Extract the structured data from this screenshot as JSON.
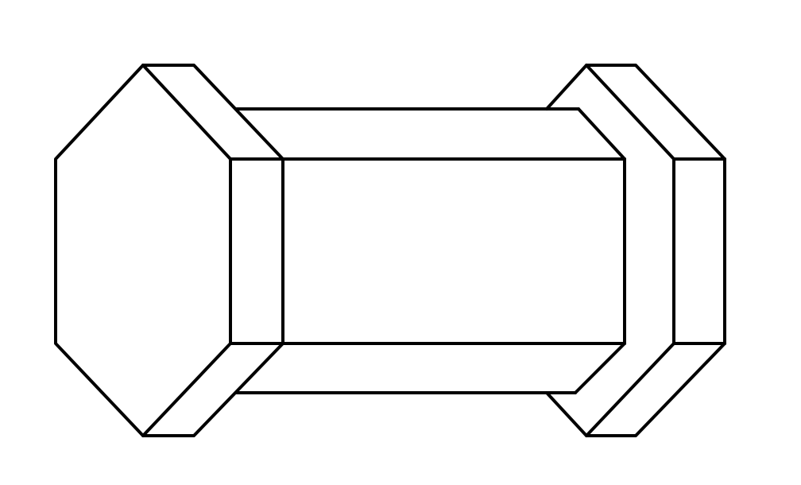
{
  "drawing": {
    "background_color": "#ffffff",
    "stroke_color": "#000000",
    "parts": [
      "left-hex-nut",
      "center-hexagonal-bar",
      "right-hex-nut"
    ]
  }
}
